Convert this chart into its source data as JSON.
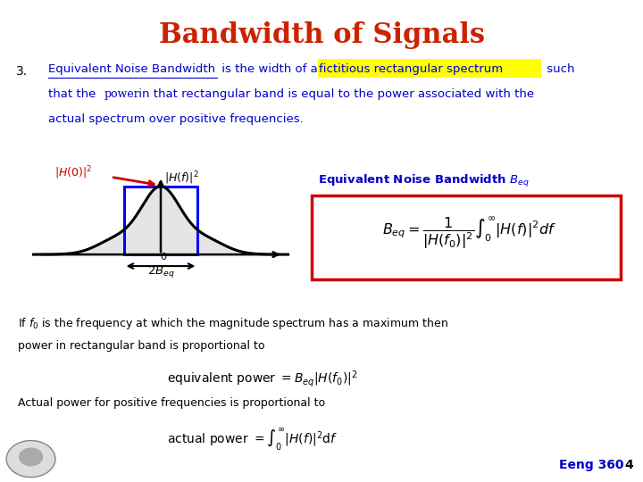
{
  "title": "Bandwidth of Signals",
  "title_color": "#CC2200",
  "bg_color": "#FFFFFF",
  "slide_number": "4",
  "course_label": "Eeng 360",
  "item_number": "3.",
  "formula_box_color": "#CC0000",
  "formula_label": "Equivalent Noise Bandwidth $B_{eq}$",
  "formula_label_color": "#0000CC",
  "formula": "$B_{eq} = \\dfrac{1}{|H(f_0)|^2} \\int_0^{\\infty} |H(f)|^2 df$",
  "bottom_text1": "If $f_0$ is the frequency at which the magnitude spectrum has a maximum then",
  "bottom_text2": "power in rectangular band is proportional to",
  "bottom_text3": "equivalent power $= B_{eq}|H(f_0)|^2$",
  "bottom_text4": "Actual power for positive frequencies is proportional to",
  "bottom_text5": "actual power $= \\int_0^{\\infty}|H(f)|^2 \\mathrm{d}f$",
  "blue": "#0000CC",
  "red": "#CC0000",
  "yellow": "#FFFF00"
}
